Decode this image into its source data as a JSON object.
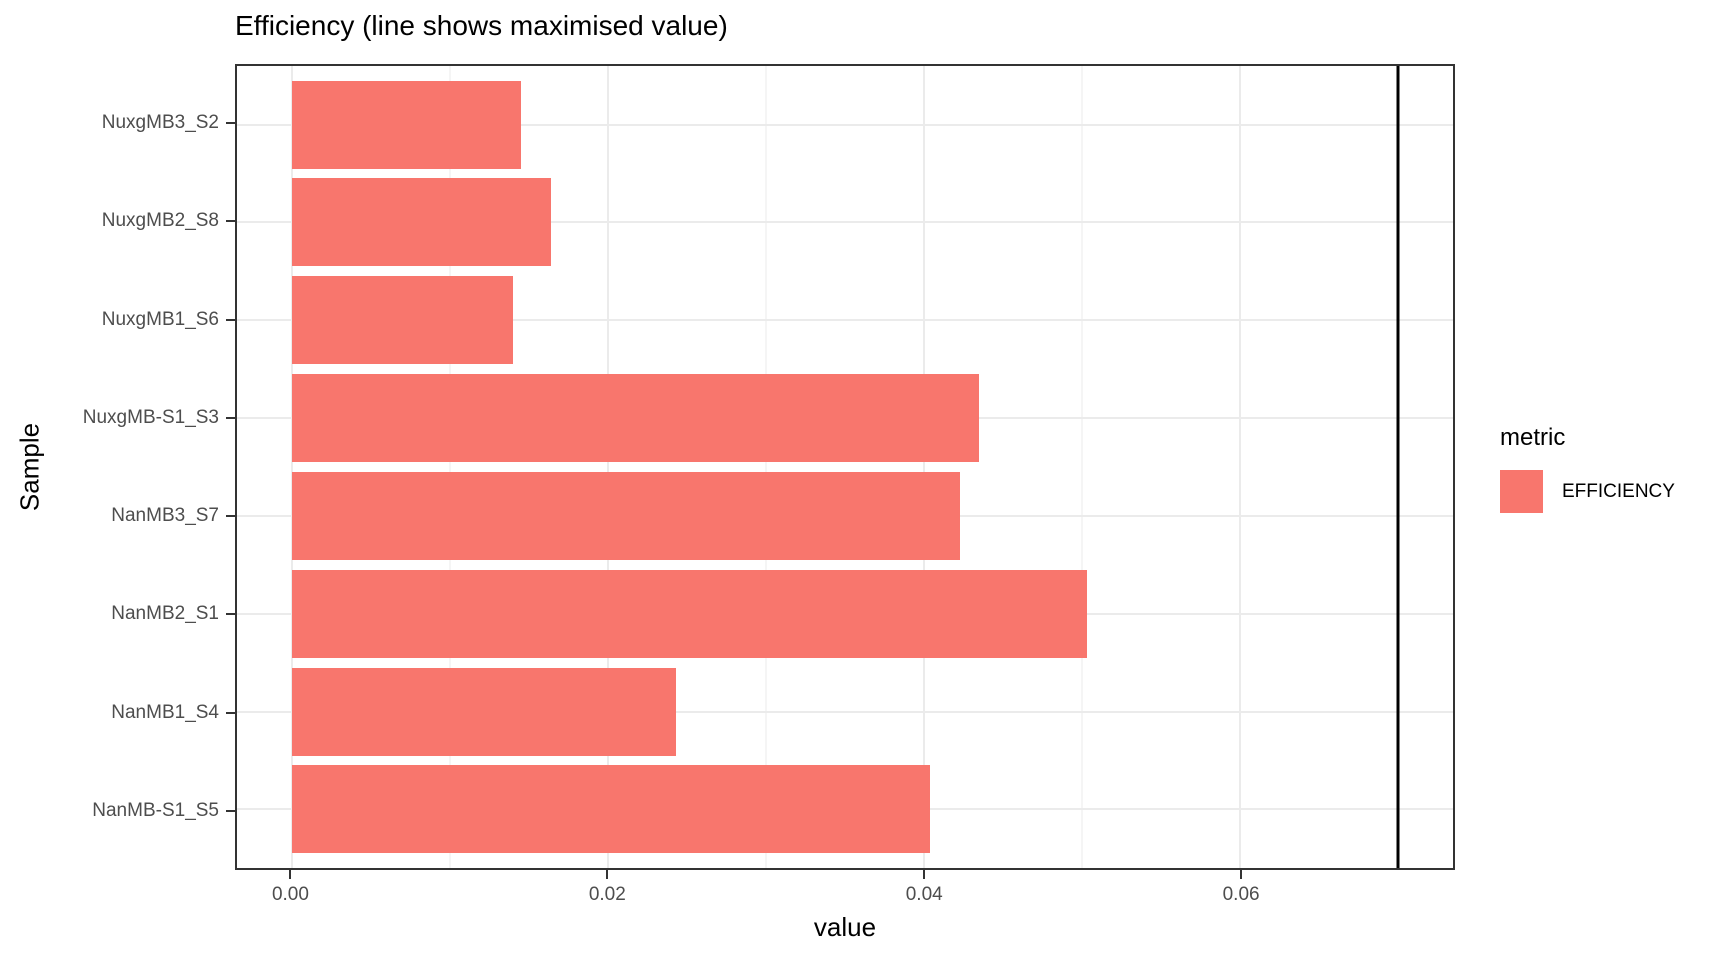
{
  "chart_data": {
    "type": "bar",
    "orientation": "horizontal",
    "title": "Efficiency (line shows maximised value)",
    "xlabel": "value",
    "ylabel": "Sample",
    "categories": [
      "NuxgMB3_S2",
      "NuxgMB2_S8",
      "NuxgMB1_S6",
      "NuxgMB-S1_S3",
      "NanMB3_S7",
      "NanMB2_S1",
      "NanMB1_S4",
      "NanMB-S1_S5"
    ],
    "values": [
      0.0145,
      0.0164,
      0.014,
      0.0435,
      0.0423,
      0.0503,
      0.0243,
      0.0404
    ],
    "xlim": [
      -0.0035,
      0.0735
    ],
    "x_ticks": [
      {
        "value": 0.0,
        "label": "0.00"
      },
      {
        "value": 0.02,
        "label": "0.02"
      },
      {
        "value": 0.04,
        "label": "0.04"
      },
      {
        "value": 0.06,
        "label": "0.06"
      }
    ],
    "x_minor_grid": [
      0.01,
      0.03,
      0.05,
      0.07
    ],
    "reference_line_x": 0.07,
    "grid": true,
    "legend": {
      "position": "right",
      "title": "metric",
      "entries": [
        {
          "label": "EFFICIENCY",
          "color": "#F8766D"
        }
      ]
    },
    "colors": {
      "bar_fill": "#F8766D",
      "reference_line": "#000000",
      "gridline": "#ebebeb",
      "panel_border": "#333333",
      "axis_text": "#4d4d4d",
      "text": "#000000",
      "background": "#ffffff"
    }
  }
}
